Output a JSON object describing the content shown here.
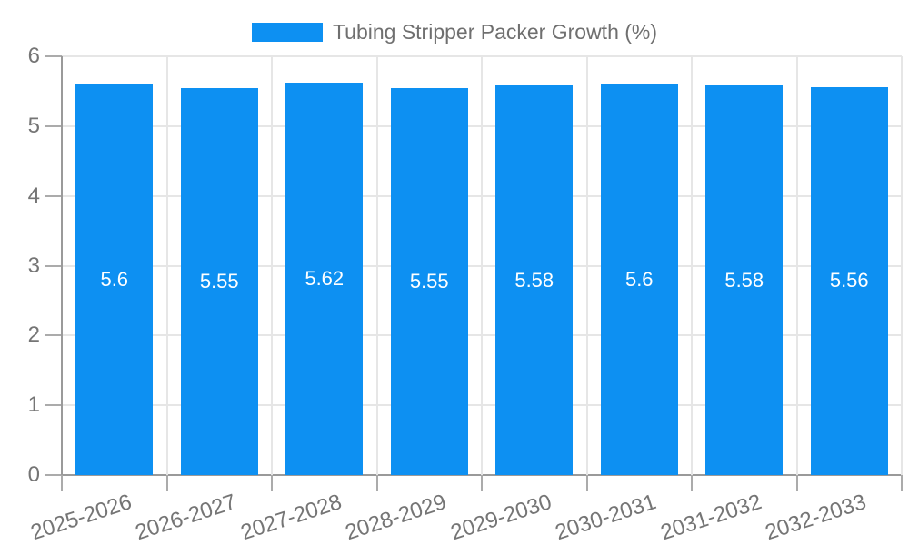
{
  "chart_data": {
    "type": "bar",
    "title": "Tubing Stripper Packer Growth (%)",
    "categories": [
      "2025-2026",
      "2026-2027",
      "2027-2028",
      "2028-2029",
      "2029-2030",
      "2030-2031",
      "2031-2032",
      "2032-2033"
    ],
    "values": [
      5.6,
      5.55,
      5.62,
      5.55,
      5.58,
      5.6,
      5.58,
      5.56
    ],
    "value_labels": [
      "5.6",
      "5.55",
      "5.62",
      "5.55",
      "5.58",
      "5.6",
      "5.58",
      "5.56"
    ],
    "xlabel": "",
    "ylabel": "",
    "ylim": [
      0,
      6
    ],
    "ytick_labels": [
      "0",
      "1",
      "2",
      "3",
      "4",
      "5",
      "6"
    ],
    "grid": true,
    "legend_position": "top",
    "colors": {
      "bar": "#0d90f2",
      "axis": "#9a9a9a",
      "gridline": "#e6e6e6",
      "tick": "#ababab",
      "axis_label_text": "#757575",
      "legend_text": "#6f6f6f",
      "value_label_text": "#ffffff",
      "background": "#ffffff"
    }
  }
}
